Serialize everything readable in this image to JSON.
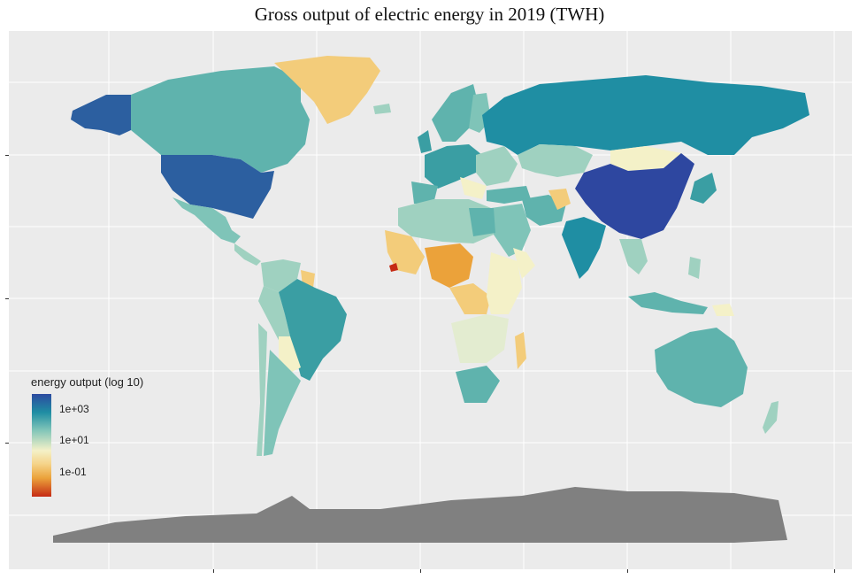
{
  "map": {
    "title": "Gross output of electric energy in 2019 (TWH)",
    "legend": {
      "title": "energy output (log 10)",
      "labels": [
        "1e+03",
        "1e+01",
        "1e-01"
      ]
    },
    "colors": {
      "panel_bg": "#ebebeb",
      "grid": "#ffffff",
      "antarctica": "#808080",
      "very_high": "#2c4aa0",
      "high": "#1f8ea3",
      "mid_high": "#5fb3ad",
      "mid": "#9fd1c0",
      "low_mid": "#f4f1c8",
      "low": "#f3cc7a",
      "very_low": "#eba23a",
      "lowest": "#c52a14"
    }
  }
}
